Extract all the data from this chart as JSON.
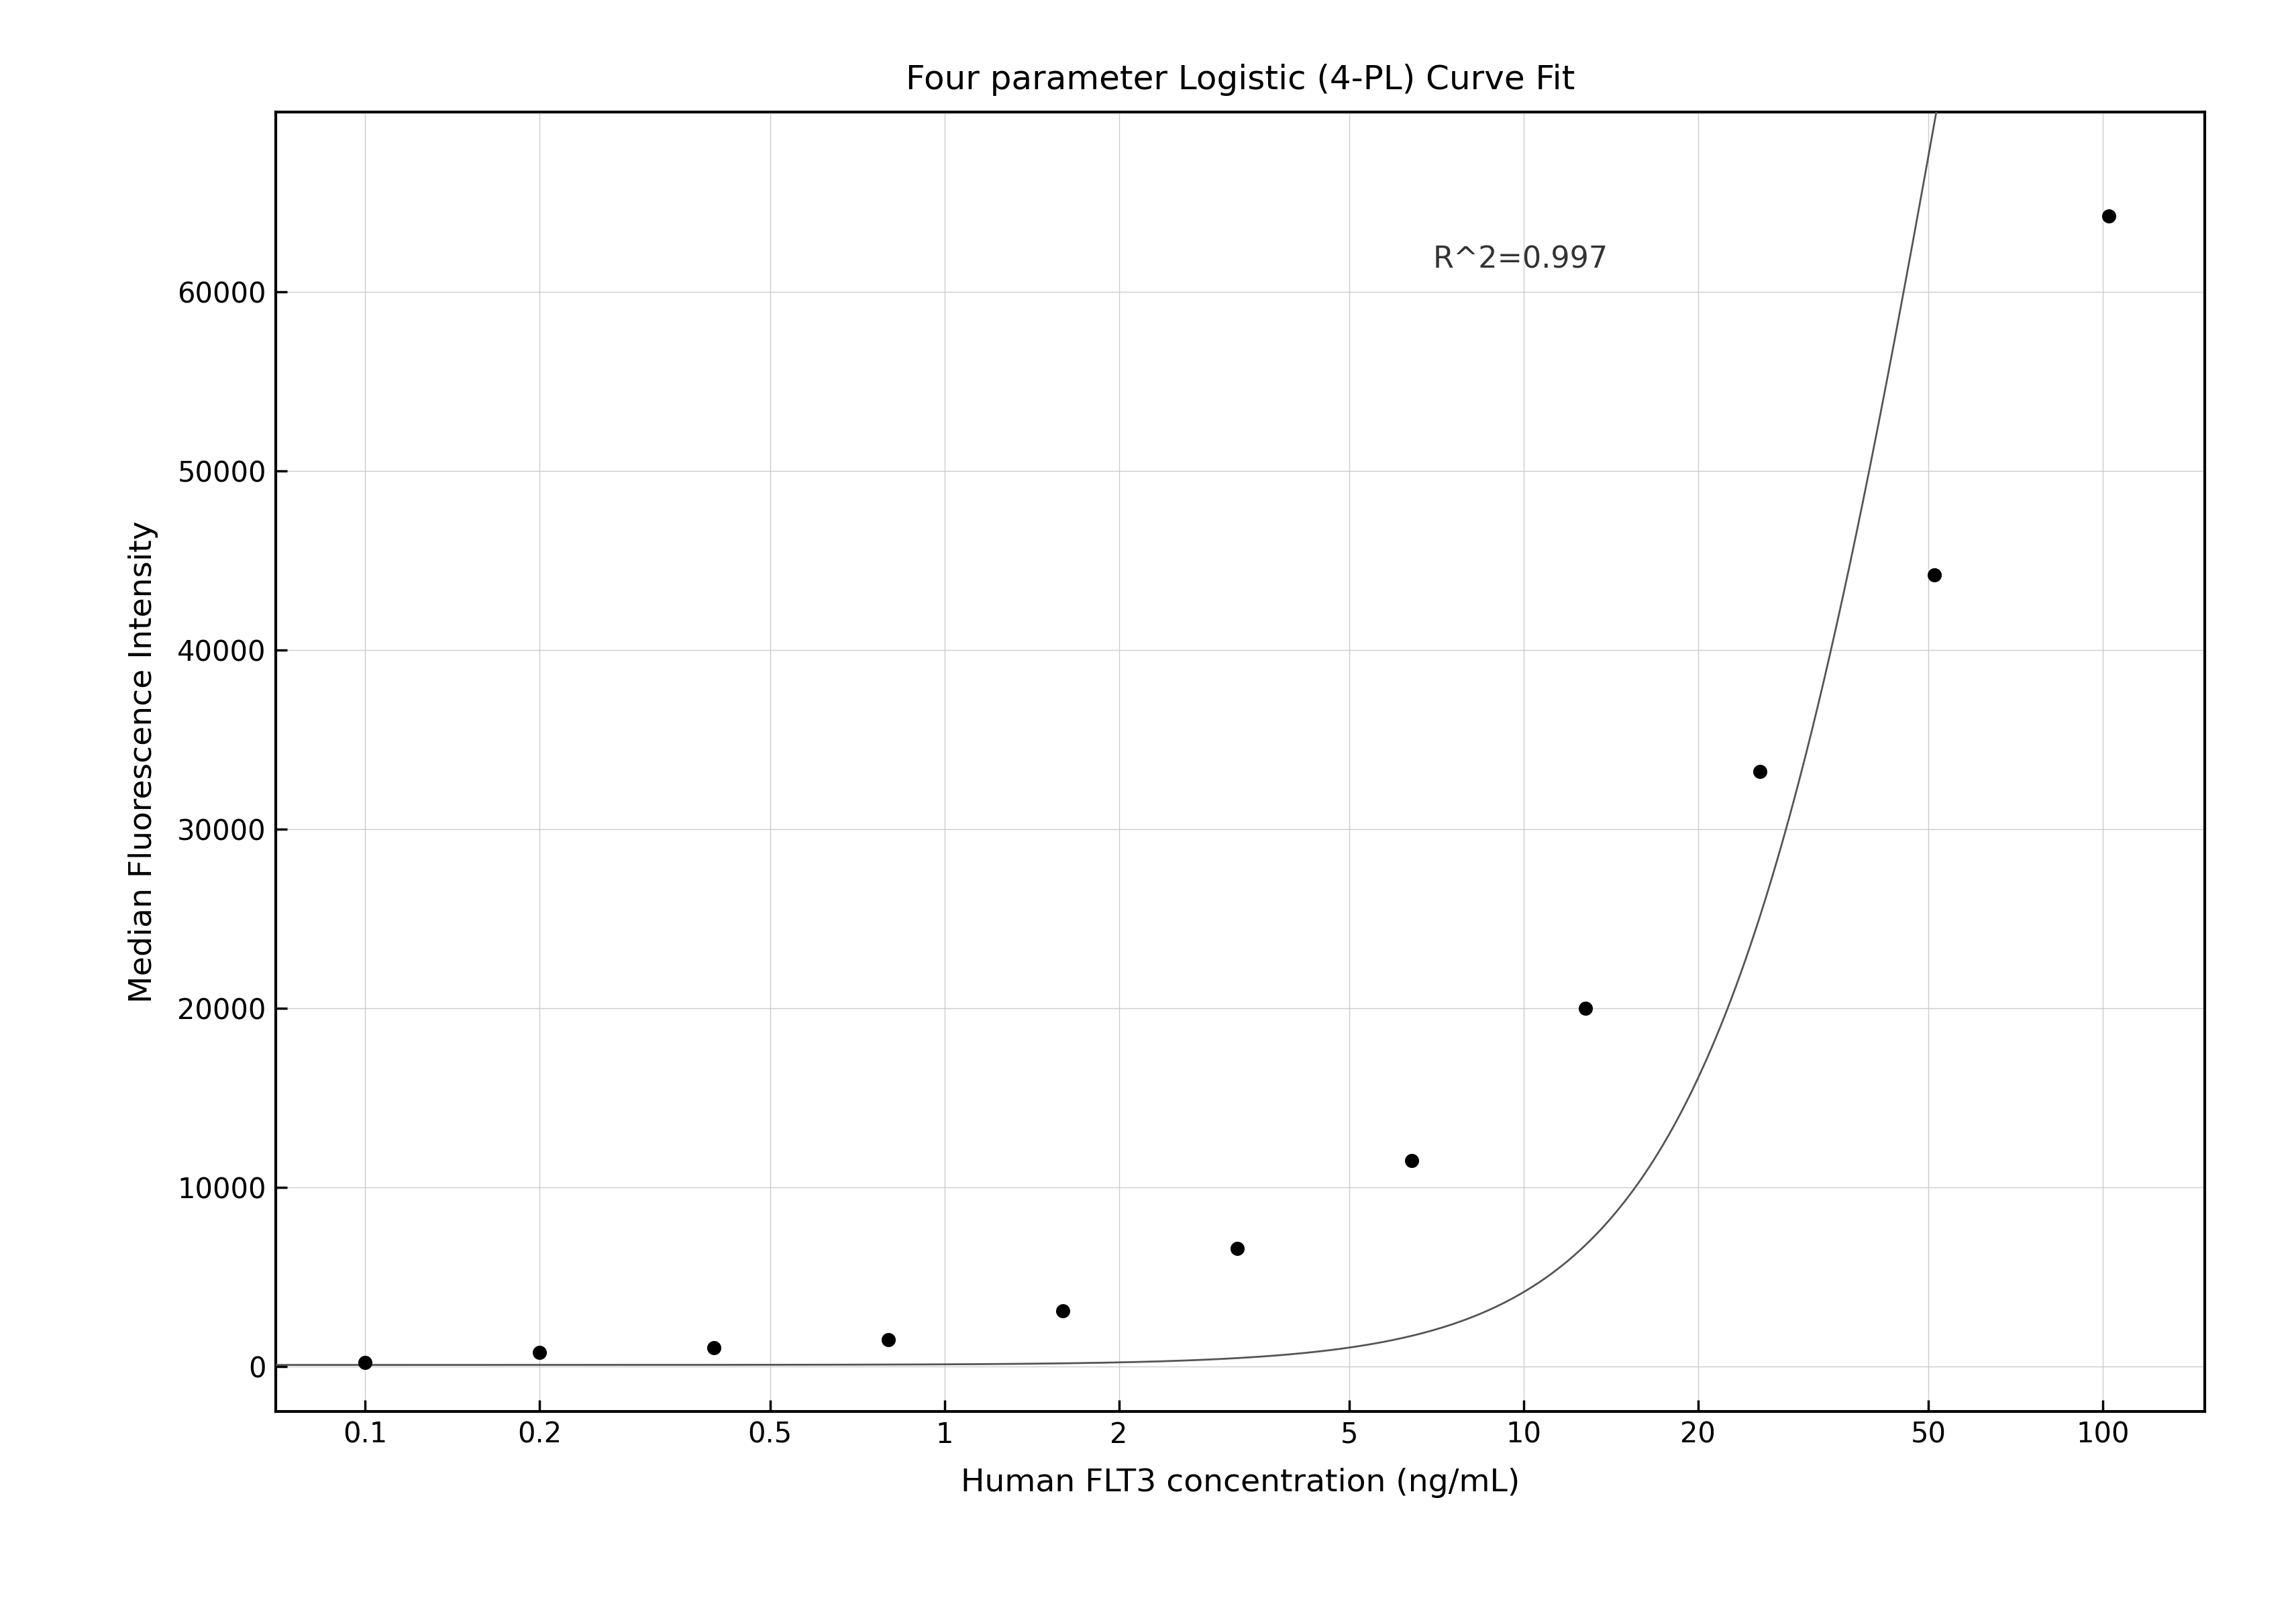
{
  "title": "Four parameter Logistic (4-PL) Curve Fit",
  "xlabel": "Human FLT3 concentration (ng/mL)",
  "ylabel": "Median Fluorescence Intensity",
  "r_squared_text": "R^2=0.997",
  "data_x": [
    0.1,
    0.2,
    0.4,
    0.8,
    1.6,
    3.2,
    6.4,
    12.8,
    25.6,
    51.2,
    102.4
  ],
  "data_y": [
    250,
    800,
    1050,
    1500,
    3100,
    6600,
    11500,
    20000,
    33200,
    44200,
    64200
  ],
  "xlim_log": [
    0.07,
    150
  ],
  "ylim": [
    -2500,
    70000
  ],
  "yticks": [
    0,
    10000,
    20000,
    30000,
    40000,
    50000,
    60000
  ],
  "xticks": [
    0.1,
    0.2,
    0.5,
    1,
    2,
    5,
    10,
    20,
    50,
    100
  ],
  "xticklabels": [
    "0.1",
    "0.2",
    "0.5",
    "1",
    "2",
    "5",
    "10",
    "20",
    "50",
    "100"
  ],
  "grid_color": "#cccccc",
  "background_color": "#ffffff",
  "line_color": "#555555",
  "dot_color": "#000000",
  "title_fontsize": 36,
  "label_fontsize": 34,
  "tick_fontsize": 30,
  "annotation_fontsize": 32,
  "4pl_A": 100,
  "4pl_B": 2.1,
  "4pl_C": 55,
  "4pl_D": 150000
}
